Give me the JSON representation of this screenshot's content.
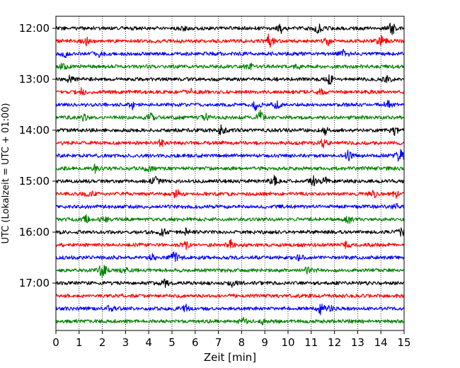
{
  "chart_data": {
    "type": "line",
    "title": "",
    "xlabel": "Zeit  [min]",
    "ylabel": "UTC (Lokalzeit = UTC + 01:00)",
    "xlim": [
      0,
      15
    ],
    "x_ticks": [
      "0",
      "1",
      "2",
      "3",
      "4",
      "5",
      "6",
      "7",
      "8",
      "9",
      "10",
      "11",
      "12",
      "13",
      "14",
      "15"
    ],
    "y_ticks": [
      "12:00",
      "13:00",
      "14:00",
      "15:00",
      "16:00",
      "17:00"
    ],
    "grid": "vertical dotted",
    "trace_colors": [
      "#000000",
      "#ff0000",
      "#0000ff",
      "#008000"
    ],
    "series": [
      {
        "name": "12:00",
        "color": "#000000",
        "events": [
          [
            5.5,
            0.6
          ],
          [
            9.7,
            0.8
          ],
          [
            11.3,
            0.9
          ],
          [
            14.5,
            1.5
          ]
        ]
      },
      {
        "name": "12:15",
        "color": "#ff0000",
        "events": [
          [
            1.3,
            0.7
          ],
          [
            9.2,
            1.5
          ],
          [
            11.7,
            0.7
          ],
          [
            14.0,
            0.9
          ]
        ]
      },
      {
        "name": "12:30",
        "color": "#0000ff",
        "events": [
          [
            0.4,
            0.7
          ],
          [
            1.9,
            0.6
          ],
          [
            12.4,
            0.8
          ]
        ]
      },
      {
        "name": "12:45",
        "color": "#008000",
        "events": [
          [
            0.3,
            0.7
          ],
          [
            8.3,
            0.8
          ],
          [
            10.5,
            0.6
          ]
        ]
      },
      {
        "name": "13:00",
        "color": "#000000",
        "events": [
          [
            0.6,
            0.6
          ],
          [
            11.8,
            1.0
          ],
          [
            14.3,
            0.6
          ]
        ]
      },
      {
        "name": "13:15",
        "color": "#ff0000",
        "events": [
          [
            1.1,
            0.6
          ],
          [
            5.8,
            0.6
          ],
          [
            11.4,
            0.5
          ]
        ]
      },
      {
        "name": "13:30",
        "color": "#0000ff",
        "events": [
          [
            3.3,
            0.6
          ],
          [
            8.6,
            0.9
          ],
          [
            9.5,
            0.8
          ],
          [
            14.3,
            0.8
          ]
        ]
      },
      {
        "name": "13:45",
        "color": "#008000",
        "events": [
          [
            1.2,
            0.6
          ],
          [
            4.1,
            0.7
          ],
          [
            6.5,
            0.7
          ],
          [
            8.8,
            1.2
          ]
        ]
      },
      {
        "name": "14:00",
        "color": "#000000",
        "events": [
          [
            7.1,
            1.0
          ],
          [
            11.6,
            0.7
          ],
          [
            14.6,
            0.8
          ]
        ]
      },
      {
        "name": "14:15",
        "color": "#ff0000",
        "events": [
          [
            4.5,
            0.6
          ],
          [
            11.5,
            1.0
          ]
        ]
      },
      {
        "name": "14:30",
        "color": "#0000ff",
        "events": [
          [
            12.6,
            0.9
          ],
          [
            14.8,
            1.4
          ]
        ]
      },
      {
        "name": "14:45",
        "color": "#008000",
        "events": [
          [
            1.7,
            0.6
          ],
          [
            4.0,
            0.6
          ]
        ]
      },
      {
        "name": "15:00",
        "color": "#000000",
        "events": [
          [
            4.3,
            1.0
          ],
          [
            9.4,
            0.8
          ],
          [
            11.1,
            0.9
          ],
          [
            11.6,
            0.7
          ]
        ]
      },
      {
        "name": "15:15",
        "color": "#ff0000",
        "events": [
          [
            1.4,
            0.7
          ],
          [
            5.2,
            0.9
          ],
          [
            13.7,
            0.6
          ],
          [
            14.6,
            0.8
          ]
        ]
      },
      {
        "name": "15:30",
        "color": "#0000ff",
        "events": [
          [
            14.7,
            0.6
          ]
        ]
      },
      {
        "name": "15:45",
        "color": "#008000",
        "events": [
          [
            1.3,
            0.8
          ],
          [
            2.1,
            0.7
          ],
          [
            12.6,
            0.8
          ]
        ]
      },
      {
        "name": "16:00",
        "color": "#000000",
        "events": [
          [
            4.6,
            0.8
          ],
          [
            5.6,
            0.6
          ],
          [
            14.9,
            0.8
          ]
        ]
      },
      {
        "name": "16:15",
        "color": "#ff0000",
        "events": [
          [
            5.6,
            0.9
          ],
          [
            7.5,
            1.0
          ],
          [
            12.5,
            0.6
          ]
        ]
      },
      {
        "name": "16:30",
        "color": "#0000ff",
        "events": [
          [
            4.2,
            0.6
          ],
          [
            5.1,
            1.3
          ],
          [
            10.5,
            0.6
          ]
        ]
      },
      {
        "name": "16:45",
        "color": "#008000",
        "events": [
          [
            2.0,
            1.5
          ],
          [
            3.0,
            0.6
          ],
          [
            10.8,
            0.6
          ]
        ]
      },
      {
        "name": "17:00",
        "color": "#000000",
        "events": [
          [
            4.7,
            0.6
          ],
          [
            7.6,
            0.5
          ]
        ]
      },
      {
        "name": "17:15",
        "color": "#ff0000",
        "events": []
      },
      {
        "name": "17:30",
        "color": "#0000ff",
        "events": [
          [
            2.3,
            0.6
          ],
          [
            5.6,
            0.6
          ],
          [
            11.4,
            0.9
          ],
          [
            11.8,
            0.5
          ]
        ]
      },
      {
        "name": "17:45",
        "color": "#008000",
        "events": [
          [
            8.1,
            0.7
          ],
          [
            8.9,
            0.5
          ]
        ]
      }
    ]
  }
}
